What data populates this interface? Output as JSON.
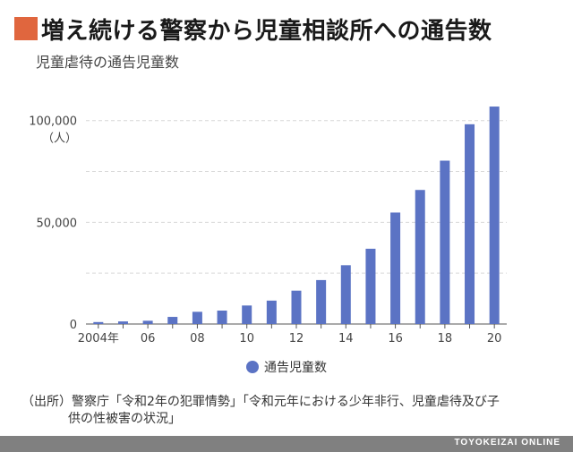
{
  "header": {
    "title": "増え続ける警察から児童相談所への通告数",
    "subtitle": "児童虐待の通告児童数",
    "accent_color": "#e0663e"
  },
  "chart_data": {
    "type": "bar",
    "title": "増え続ける警察から児童相談所への通告数",
    "subtitle": "児童虐待の通告児童数",
    "xlabel": "",
    "ylabel": "（人）",
    "ylim": [
      0,
      110000
    ],
    "yticks": [
      0,
      50000,
      100000
    ],
    "ytick_labels": [
      "0",
      "50,000",
      "100,000"
    ],
    "grid": true,
    "categories": [
      "2004",
      "2005",
      "2006",
      "2007",
      "2008",
      "2009",
      "2010",
      "2011",
      "2012",
      "2013",
      "2014",
      "2015",
      "2016",
      "2017",
      "2018",
      "2019",
      "2020"
    ],
    "xtick_labels": [
      "2004年",
      "",
      "06",
      "",
      "08",
      "",
      "10",
      "",
      "12",
      "",
      "14",
      "",
      "16",
      "",
      "18",
      "",
      "20"
    ],
    "series": [
      {
        "name": "通告児童数",
        "color": "#5b73c4",
        "values": [
          962,
          1275,
          1600,
          3500,
          6000,
          6600,
          9100,
          11500,
          16400,
          21600,
          28900,
          37000,
          54800,
          65900,
          80300,
          98200,
          106900
        ]
      }
    ]
  },
  "source": {
    "line1": "（出所）警察庁「令和2年の犯罪情勢」「令和元年における少年非行、児童虐待及び子",
    "line2": "供の性被害の状況」"
  },
  "footer": {
    "brand": "TOYOKEIZAI ONLINE"
  }
}
